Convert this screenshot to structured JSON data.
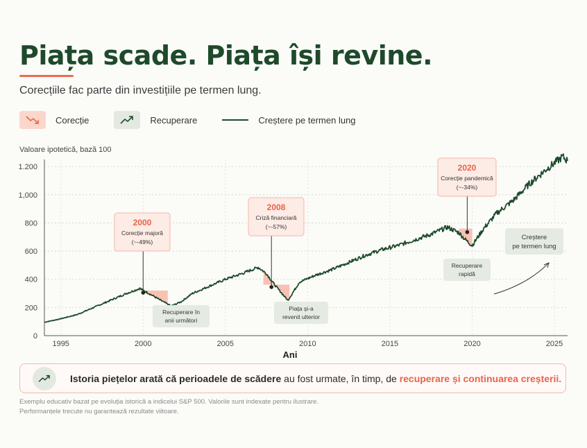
{
  "header": {
    "title": "Piața scade. Piața își revine.",
    "subtitle": "Corecțiile fac parte din investițiile pe termen lung."
  },
  "legend": {
    "items": [
      {
        "label": "Corecție",
        "icon": "trend-down-icon"
      },
      {
        "label": "Recuperare",
        "icon": "trend-up-icon"
      },
      {
        "label": "Creștere pe termen lung",
        "icon": "line-swatch"
      }
    ]
  },
  "chart_data": {
    "type": "line",
    "ylabel": "Valoare ipotetică, bază 100",
    "xlabel": "Ani",
    "xlim": [
      1994,
      2025.8
    ],
    "ylim": [
      0,
      1250
    ],
    "yticks": [
      0,
      200,
      400,
      600,
      800,
      1000,
      1200
    ],
    "ytick_labels": [
      "0",
      "200",
      "400",
      "600",
      "800",
      "1,000",
      "1.200"
    ],
    "xticks": [
      1995,
      2000,
      2005,
      2010,
      2015,
      2020,
      2025
    ],
    "series": [
      {
        "color": "#1e4a2b",
        "x": [
          1994.0,
          1995.0,
          1996.0,
          1997.0,
          1998.0,
          1999.0,
          1999.8,
          2000.5,
          2001.0,
          2001.7,
          2002.3,
          2003.0,
          2004.0,
          2005.0,
          2006.0,
          2007.0,
          2007.5,
          2008.0,
          2008.8,
          2009.5,
          2010.5,
          2011.5,
          2012.5,
          2013.5,
          2014.5,
          2015.5,
          2016.5,
          2017.5,
          2018.5,
          2019.2,
          2019.6,
          2020.0,
          2020.7,
          2021.5,
          2022.5,
          2023.5,
          2024.5,
          2025.5,
          2025.8
        ],
        "y": [
          95,
          120,
          150,
          200,
          250,
          300,
          335,
          290,
          255,
          210,
          240,
          300,
          350,
          400,
          440,
          485,
          440,
          360,
          250,
          380,
          430,
          470,
          520,
          570,
          610,
          640,
          680,
          720,
          770,
          730,
          680,
          640,
          760,
          870,
          960,
          1080,
          1180,
          1270,
          1240
        ]
      }
    ],
    "annotations": [
      {
        "year": "2000",
        "label": "Corecție majoră",
        "change": "(~-49%)",
        "point": [
          2000,
          305
        ],
        "recovery": "Recuperare în anii următori"
      },
      {
        "year": "2008",
        "label": "Criză financiară",
        "change": "(~-57%)",
        "point": [
          2007.8,
          345
        ],
        "recovery": "Piața și-a revenit ulterior"
      },
      {
        "year": "2020",
        "label": "Corecție pandemică",
        "change": "(~-34%)",
        "point": [
          2019.7,
          735
        ],
        "recovery": "Recuperare rapidă"
      }
    ],
    "growth_note": "Creștere pe termen lung",
    "grid": true,
    "colors": {
      "line": "#1e4a2b",
      "correction": "#f7b3a3",
      "accent": "#e8644a",
      "callout_green": "#e5ebe2"
    }
  },
  "banner": {
    "icon": "trend-up-icon",
    "text_bold": "Istoria piețelor arată că perioadele de scădere",
    "text_mid": " au fost urmate, în timp, de ",
    "text_highlight": "recuperare și continuarea creșterii."
  },
  "footer": {
    "line1": "Exemplu educativ bazat pe evoluția istorică a indicelui S&P 500. Valorile sunt indexate pentru ilustrare.",
    "line2": "Performanțele trecute nu garantează rezultate viitoare."
  }
}
